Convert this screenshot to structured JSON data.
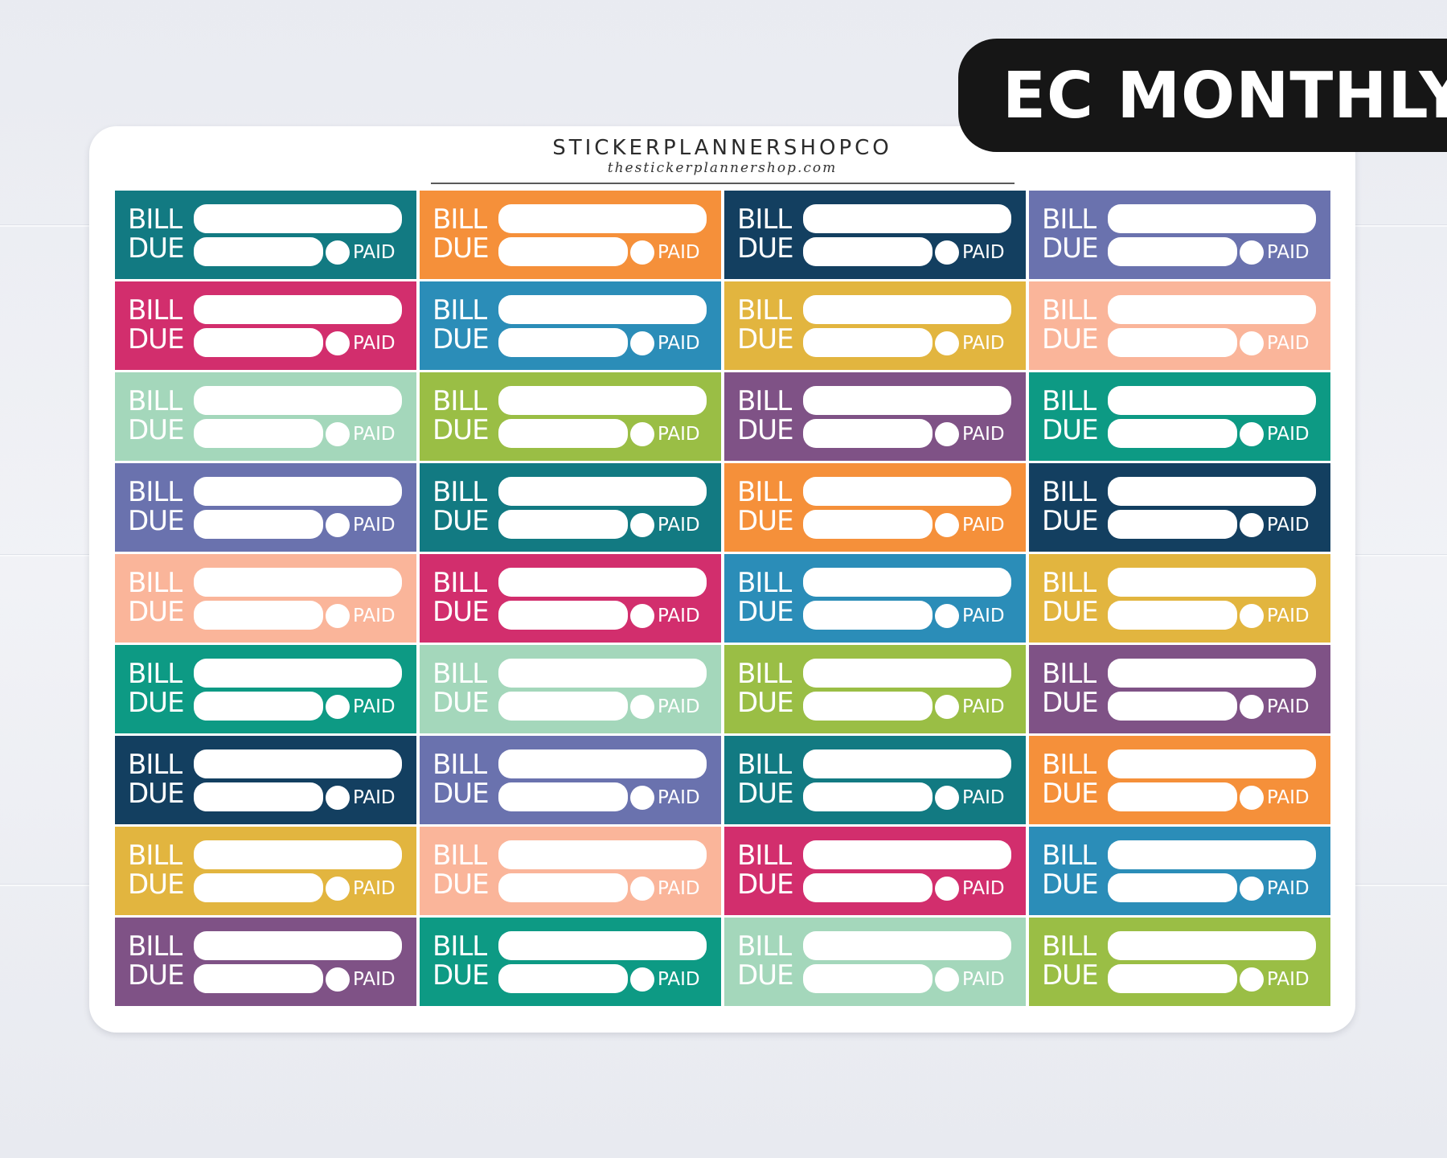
{
  "badge": {
    "text": "EC MONTHLY"
  },
  "sheet": {
    "brand": "STICKERPLANNERSHOPCO",
    "url": "thestickerplannershop.com"
  },
  "sticker": {
    "line1": "BILL",
    "line2": "DUE",
    "paid": "PAID"
  },
  "colors": [
    "#127a82",
    "#f5903a",
    "#133f60",
    "#6a72ae",
    "#d22e6d",
    "#2b8db8",
    "#e2b53f",
    "#fab59a",
    "#a4d7bb",
    "#9abe45",
    "#7f5286",
    "#0d9a84",
    "#6a72ae",
    "#127a82",
    "#f5903a",
    "#133f60",
    "#fab59a",
    "#d22e6d",
    "#2b8db8",
    "#e2b53f",
    "#0d9a84",
    "#a4d7bb",
    "#9abe45",
    "#7f5286",
    "#133f60",
    "#6a72ae",
    "#127a82",
    "#f5903a",
    "#e2b53f",
    "#fab59a",
    "#d22e6d",
    "#2b8db8",
    "#7f5286",
    "#0d9a84",
    "#a4d7bb",
    "#9abe45"
  ]
}
